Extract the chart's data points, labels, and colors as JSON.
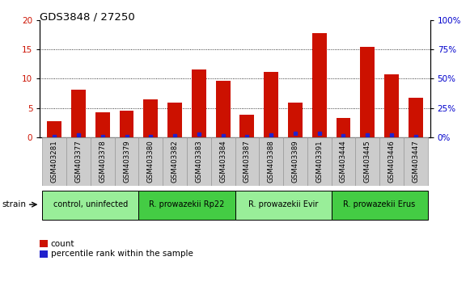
{
  "title": "GDS3848 / 27250",
  "samples": [
    "GSM403281",
    "GSM403377",
    "GSM403378",
    "GSM403379",
    "GSM403380",
    "GSM403382",
    "GSM403383",
    "GSM403384",
    "GSM403387",
    "GSM403388",
    "GSM403389",
    "GSM403391",
    "GSM403444",
    "GSM403445",
    "GSM403446",
    "GSM403447"
  ],
  "counts": [
    2.8,
    8.1,
    4.3,
    4.5,
    6.4,
    5.9,
    11.5,
    9.7,
    3.9,
    11.1,
    5.9,
    17.8,
    3.3,
    15.4,
    10.8,
    6.7
  ],
  "percentiles": [
    0.4,
    1.7,
    0.4,
    0.4,
    0.5,
    1.3,
    2.8,
    1.4,
    0.6,
    1.8,
    3.2,
    3.2,
    1.0,
    1.8,
    1.9,
    0.6
  ],
  "bar_color": "#cc1100",
  "dot_color": "#2222cc",
  "ylim_left": [
    0,
    20
  ],
  "ylim_right": [
    0,
    100
  ],
  "yticks_left": [
    0,
    5,
    10,
    15,
    20
  ],
  "yticks_right": [
    0,
    25,
    50,
    75,
    100
  ],
  "grid_values": [
    5,
    10,
    15
  ],
  "groups": [
    {
      "label": "control, uninfected",
      "start": 0,
      "end": 3,
      "color": "#99ee99"
    },
    {
      "label": "R. prowazekii Rp22",
      "start": 4,
      "end": 7,
      "color": "#44cc44"
    },
    {
      "label": "R. prowazekii Evir",
      "start": 8,
      "end": 11,
      "color": "#99ee99"
    },
    {
      "label": "R. prowazekii Erus",
      "start": 12,
      "end": 15,
      "color": "#44cc44"
    }
  ],
  "legend_count_label": "count",
  "legend_pct_label": "percentile rank within the sample",
  "strain_label": "strain",
  "bar_width": 0.6,
  "left_axis_color": "#cc1100",
  "right_axis_color": "#0000cc",
  "xtick_bg_color": "#cccccc",
  "xtick_border_color": "#999999"
}
